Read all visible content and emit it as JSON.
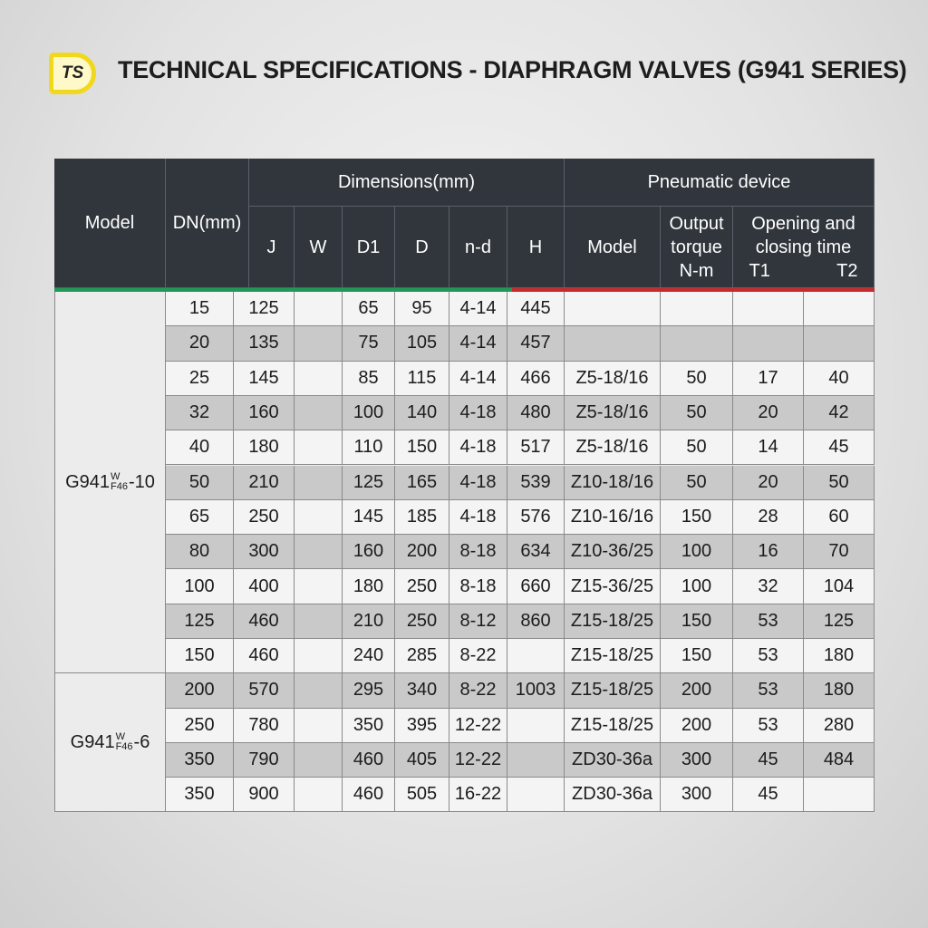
{
  "header": {
    "logo": "TS",
    "title": "TECHNICAL SPECIFICATIONS - DIAPHRAGM VALVES (G941 SERIES)"
  },
  "table": {
    "columns": {
      "model": "Model",
      "dn": "DN(mm)",
      "dimensions": "Dimensions(mm)",
      "dim_cols": [
        "J",
        "W",
        "D1",
        "D",
        "n-d",
        "H"
      ],
      "pneumatic": "Pneumatic device",
      "p_model": "Model",
      "torque": [
        "Output",
        "torque",
        "N-m"
      ],
      "time": [
        "Opening and",
        "closing time"
      ],
      "time_cols": [
        "T1",
        "T2"
      ]
    },
    "groups": [
      {
        "model": {
          "base": "G941",
          "sup": "W",
          "sub": "F46",
          "suffix": "-10"
        },
        "rows": [
          [
            15,
            125,
            null,
            65,
            95,
            "4-14",
            445,
            null,
            null,
            null,
            null
          ],
          [
            20,
            135,
            null,
            75,
            105,
            "4-14",
            457,
            null,
            null,
            null,
            null
          ],
          [
            25,
            145,
            null,
            85,
            115,
            "4-14",
            466,
            "Z5-18/16",
            50,
            17,
            40
          ],
          [
            32,
            160,
            null,
            100,
            140,
            "4-18",
            480,
            "Z5-18/16",
            50,
            20,
            42
          ],
          [
            40,
            180,
            null,
            110,
            150,
            "4-18",
            517,
            "Z5-18/16",
            50,
            14,
            45
          ],
          [
            50,
            210,
            null,
            125,
            165,
            "4-18",
            539,
            "Z10-18/16",
            50,
            20,
            50
          ],
          [
            65,
            250,
            null,
            145,
            185,
            "4-18",
            576,
            "Z10-16/16",
            150,
            28,
            60
          ],
          [
            80,
            300,
            null,
            160,
            200,
            "8-18",
            634,
            "Z10-36/25",
            100,
            16,
            70
          ],
          [
            100,
            400,
            null,
            180,
            250,
            "8-18",
            660,
            "Z15-36/25",
            100,
            32,
            104
          ],
          [
            125,
            460,
            null,
            210,
            250,
            "8-12",
            860,
            "Z15-18/25",
            150,
            53,
            125
          ],
          [
            150,
            460,
            null,
            240,
            285,
            "8-22",
            null,
            "Z15-18/25",
            150,
            53,
            180
          ]
        ]
      },
      {
        "model": {
          "base": "G941",
          "sup": "W",
          "sub": "F46",
          "suffix": "-6"
        },
        "rows": [
          [
            200,
            570,
            null,
            295,
            340,
            "8-22",
            1003,
            "Z15-18/25",
            200,
            53,
            180
          ],
          [
            250,
            780,
            null,
            350,
            395,
            "12-22",
            null,
            "Z15-18/25",
            200,
            53,
            280
          ],
          [
            350,
            790,
            null,
            460,
            405,
            "12-22",
            null,
            "ZD30-36a",
            300,
            45,
            484
          ],
          [
            350,
            900,
            null,
            460,
            505,
            "16-22",
            null,
            "ZD30-36a",
            300,
            45,
            null
          ]
        ]
      }
    ]
  }
}
